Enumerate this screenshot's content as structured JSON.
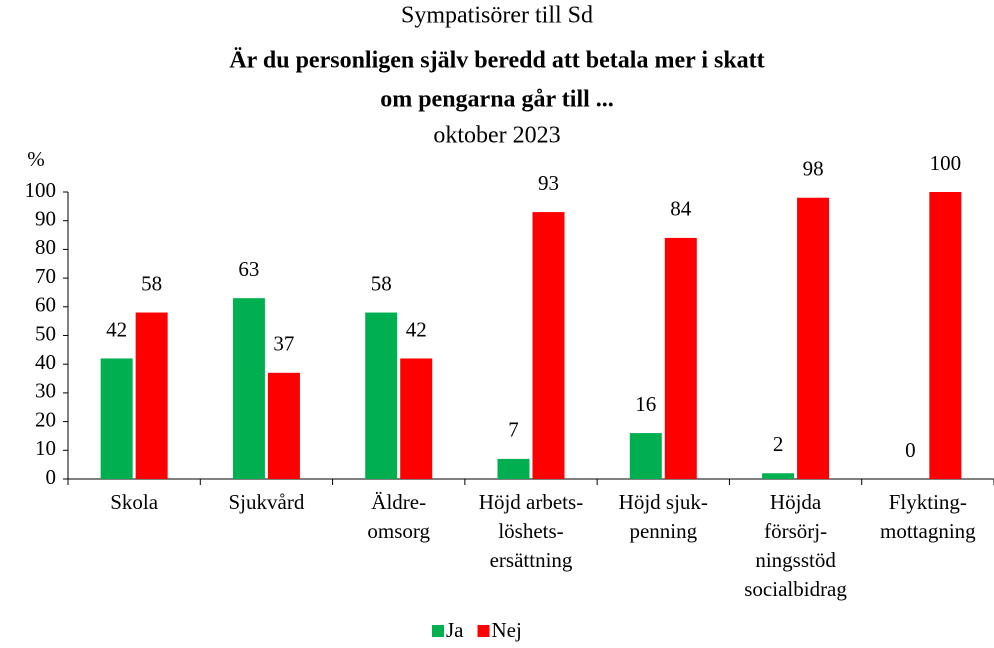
{
  "chart_data": {
    "type": "bar",
    "title": [
      "Sympatisörer till Sd",
      "Är du personligen själv beredd att betala mer i skatt",
      "om pengarna går till ...",
      "oktober 2023"
    ],
    "y_label": "%",
    "categories": [
      [
        "Skola"
      ],
      [
        "Sjukvård"
      ],
      [
        "Äldre-",
        "omsorg"
      ],
      [
        "Höjd arbets-",
        "löshets-",
        "ersättning"
      ],
      [
        "Höjd sjuk-",
        "penning"
      ],
      [
        "Höjda",
        "försörj-",
        "ningsstöd",
        "socialbidrag"
      ],
      [
        "Flykting-",
        "mottagning"
      ]
    ],
    "series": [
      {
        "name": "Ja",
        "color": "#00b050",
        "values": [
          42,
          63,
          58,
          7,
          16,
          2,
          0
        ]
      },
      {
        "name": "Nej",
        "color": "#ff0000",
        "values": [
          58,
          37,
          42,
          93,
          84,
          98,
          100
        ]
      }
    ],
    "ylim": [
      0,
      100
    ],
    "yticks": [
      0,
      10,
      20,
      30,
      40,
      50,
      60,
      70,
      80,
      90,
      100
    ],
    "legend": "bottom"
  }
}
